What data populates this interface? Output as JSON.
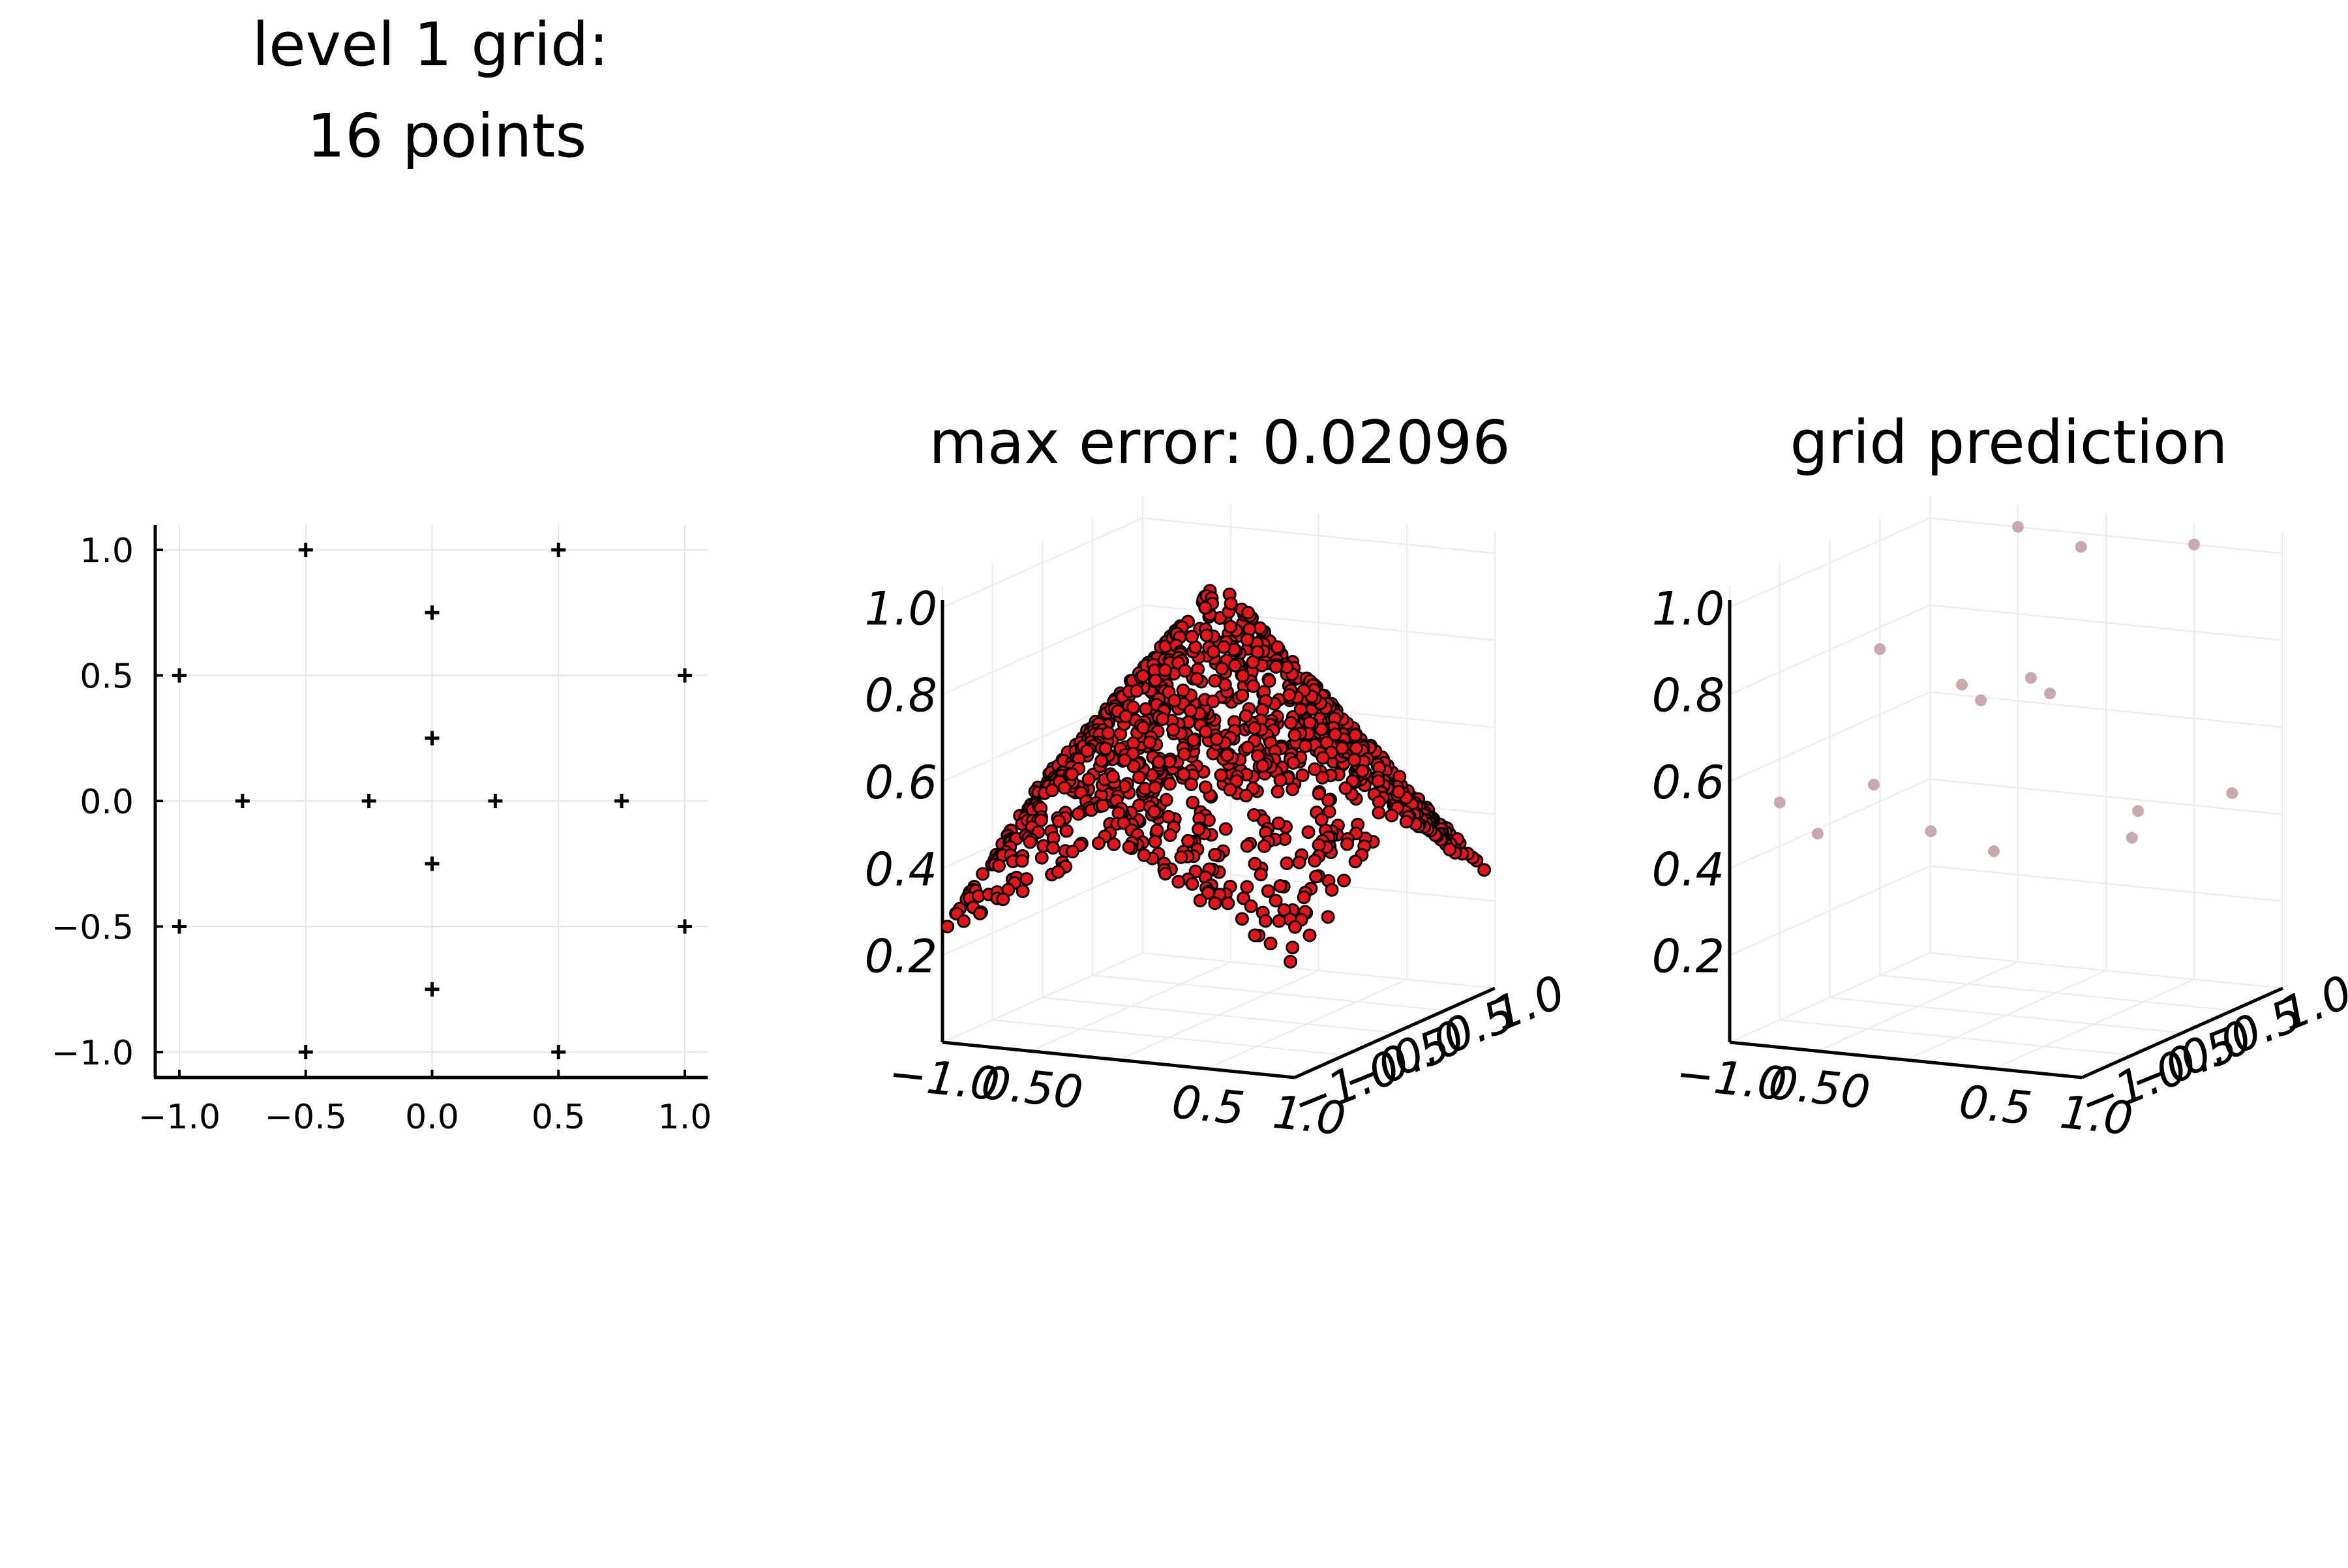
{
  "chart_data": [
    {
      "type": "scatter",
      "title_line1": "level 1 grid:",
      "title_line2": "16 points",
      "marker": "+",
      "xlim": [
        -1.05,
        1.05
      ],
      "ylim": [
        -1.1,
        1.1
      ],
      "xticks": [
        "−1.0",
        "−0.5",
        "0.0",
        "0.5",
        "1.0"
      ],
      "yticks": [
        "1.0",
        "0.5",
        "0.0",
        "−0.5",
        "−1.0"
      ],
      "grid": true,
      "points": [
        {
          "x": -0.5,
          "y": 1.0
        },
        {
          "x": 0.5,
          "y": 1.0
        },
        {
          "x": 0.0,
          "y": 0.75
        },
        {
          "x": -1.0,
          "y": 0.5
        },
        {
          "x": 1.0,
          "y": 0.5
        },
        {
          "x": 0.0,
          "y": 0.25
        },
        {
          "x": -0.75,
          "y": 0.0
        },
        {
          "x": -0.25,
          "y": 0.0
        },
        {
          "x": 0.25,
          "y": 0.0
        },
        {
          "x": 0.75,
          "y": 0.0
        },
        {
          "x": 0.0,
          "y": -0.25
        },
        {
          "x": -1.0,
          "y": -0.5
        },
        {
          "x": 1.0,
          "y": -0.5
        },
        {
          "x": 0.0,
          "y": -0.75
        },
        {
          "x": -0.5,
          "y": -1.0
        },
        {
          "x": 0.5,
          "y": -1.0
        }
      ]
    },
    {
      "type": "scatter",
      "projection": "3d",
      "title": "max error: 0.02096",
      "zticks": [
        "1.0",
        "0.8",
        "0.6",
        "0.4",
        "0.2"
      ],
      "xticks": [
        "−1.0",
        "0.50",
        "0.5",
        "1.0"
      ],
      "yticks": [
        "−1.0",
        "−0.5",
        "0.0",
        "0.5",
        "1.0"
      ],
      "marker_color": "#e8141a",
      "marker_edge": "#000000",
      "grid": true
    },
    {
      "type": "scatter",
      "projection": "3d",
      "title": "grid prediction",
      "zticks": [
        "1.0",
        "0.8",
        "0.6",
        "0.4",
        "0.2"
      ],
      "xticks": [
        "−1.0",
        "0.50",
        "0.5",
        "1.0"
      ],
      "yticks": [
        "−1.0",
        "−0.5",
        "0.0",
        "0.5",
        "1.0"
      ],
      "marker_color": "#c9a9ae",
      "grid": true
    }
  ]
}
